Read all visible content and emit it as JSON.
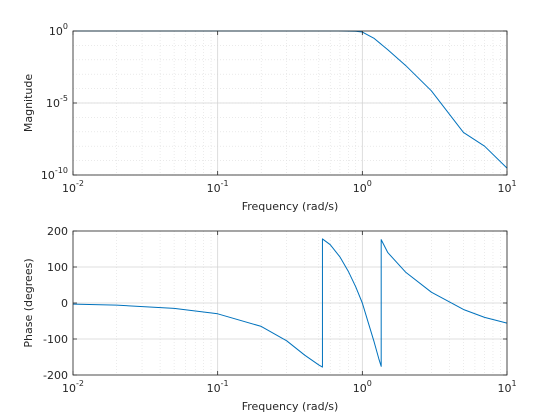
{
  "chart_data": [
    {
      "type": "line",
      "xscale": "log",
      "yscale": "log",
      "xlim": [
        0.01,
        10
      ],
      "ylim": [
        1e-10,
        1
      ],
      "xlabel": "Frequency (rad/s)",
      "ylabel": "Magnitude",
      "grid": "on",
      "x_ticks": [
        {
          "value": 0.01,
          "base": "10",
          "exp": "-2"
        },
        {
          "value": 0.1,
          "base": "10",
          "exp": "-1"
        },
        {
          "value": 1,
          "base": "10",
          "exp": "0"
        },
        {
          "value": 10,
          "base": "10",
          "exp": "1"
        }
      ],
      "y_ticks": [
        {
          "value": 1,
          "base": "10",
          "exp": "0"
        },
        {
          "value": 1e-05,
          "base": "10",
          "exp": "-5"
        },
        {
          "value": 1e-10,
          "base": "10",
          "exp": "-10"
        }
      ],
      "series": [
        {
          "color": "#0072BD",
          "x": [
            0.01,
            0.1,
            0.5,
            0.7,
            0.9,
            1.0,
            1.2,
            1.5,
            2,
            3,
            5,
            7,
            10
          ],
          "y": [
            1,
            1,
            0.999,
            0.99,
            0.96,
            0.85,
            0.32,
            0.05,
            0.0039,
            7e-05,
            9e-08,
            1e-08,
            3e-10
          ]
        }
      ]
    },
    {
      "type": "line",
      "xscale": "log",
      "xlim": [
        0.01,
        10
      ],
      "ylim": [
        -200,
        200
      ],
      "xlabel": "Frequency (rad/s)",
      "ylabel": "Phase (degrees)",
      "grid": "on",
      "x_ticks": [
        {
          "value": 0.01,
          "base": "10",
          "exp": "-2"
        },
        {
          "value": 0.1,
          "base": "10",
          "exp": "-1"
        },
        {
          "value": 1,
          "base": "10",
          "exp": "0"
        },
        {
          "value": 10,
          "base": "10",
          "exp": "1"
        }
      ],
      "y_ticks": [
        {
          "value": 200,
          "label": "200"
        },
        {
          "value": 100,
          "label": "100"
        },
        {
          "value": 0,
          "label": "0"
        },
        {
          "value": -100,
          "label": "-100"
        },
        {
          "value": -200,
          "label": "-200"
        }
      ],
      "series": [
        {
          "color": "#0072BD",
          "x": [
            0.01,
            0.02,
            0.05,
            0.1,
            0.2,
            0.3,
            0.4,
            0.5,
            0.53,
            0.53,
            0.6,
            0.7,
            0.8,
            0.9,
            1.0,
            1.1,
            1.2,
            1.3,
            1.35,
            1.35,
            1.5,
            2,
            3,
            5,
            7,
            10
          ],
          "y": [
            -3,
            -6,
            -15,
            -30,
            -65,
            -105,
            -145,
            -172,
            -178,
            178,
            162,
            128,
            88,
            45,
            0,
            -55,
            -105,
            -155,
            -176,
            176,
            140,
            85,
            30,
            -18,
            -40,
            -56
          ]
        }
      ]
    }
  ]
}
